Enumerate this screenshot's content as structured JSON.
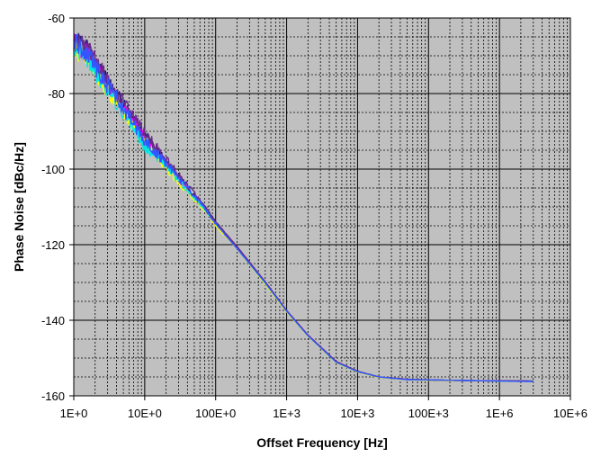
{
  "chart_data": {
    "type": "line",
    "xlabel": "Offset Frequency [Hz]",
    "ylabel": "Phase Noise [dBc/Hz]",
    "xscale": "log",
    "xlim": [
      1,
      1000000
    ],
    "ylim": [
      -160,
      -60
    ],
    "grid": "major and minor",
    "plot_background": "#c0c0c0",
    "x_tick_labels": [
      "1E+0",
      "10E+0",
      "100E+0",
      "1E+3",
      "10E+3",
      "100E+3",
      "1E+6",
      "10E+6"
    ],
    "y_tick_labels": [
      "-60",
      "-80",
      "-100",
      "-120",
      "-140",
      "-160"
    ],
    "y_ticks": [
      -60,
      -80,
      -100,
      -120,
      -140,
      -160
    ],
    "series": [
      {
        "color": "#1a1a6e",
        "x": [
          1,
          1.5,
          2,
          3,
          5,
          7,
          10,
          15,
          20,
          30,
          50,
          70,
          100,
          200,
          500,
          1000,
          2000,
          5000,
          10000,
          20000,
          50000,
          100000,
          200000,
          500000,
          1000000,
          3000000
        ],
        "y": [
          -66,
          -68,
          -72,
          -77,
          -83,
          -87,
          -91,
          -95,
          -98,
          -102,
          -107,
          -110,
          -114,
          -120.5,
          -130,
          -137.5,
          -144,
          -151,
          -153.5,
          -155,
          -155.7,
          -155.8,
          -155.9,
          -156,
          -156,
          -156.1
        ]
      },
      {
        "color": "#ff00ff",
        "x": [
          1,
          1.5,
          2,
          3,
          5,
          7,
          10,
          15,
          20,
          30,
          50,
          70,
          100,
          200,
          500,
          1000,
          2000,
          5000,
          10000,
          20000,
          50000,
          100000,
          200000,
          500000,
          1000000,
          3000000
        ],
        "y": [
          -67,
          -69,
          -73,
          -77,
          -84,
          -87.5,
          -92,
          -95.5,
          -98.5,
          -102.5,
          -107.5,
          -110.5,
          -114.5,
          -121,
          -130,
          -137.5,
          -144,
          -151,
          -153.6,
          -155,
          -155.7,
          -155.8,
          -155.9,
          -156,
          -156.1,
          -156.2
        ]
      },
      {
        "color": "#ffff00",
        "x": [
          1,
          1.5,
          2,
          3,
          5,
          7,
          10,
          15,
          20,
          30,
          50,
          70,
          100,
          200,
          500,
          1000,
          2000,
          5000,
          10000,
          20000,
          50000,
          100000,
          200000,
          500000,
          1000000,
          3000000
        ],
        "y": [
          -68,
          -70,
          -74,
          -79,
          -85,
          -89,
          -93,
          -96.5,
          -99.5,
          -103.5,
          -108,
          -111,
          -115,
          -121,
          -130.5,
          -137.8,
          -144.2,
          -151.2,
          -153.7,
          -155.1,
          -155.7,
          -155.9,
          -156,
          -156,
          -156.1,
          -156.2
        ]
      },
      {
        "color": "#00e5e5",
        "x": [
          1,
          1.5,
          2,
          3,
          5,
          7,
          10,
          15,
          20,
          30,
          50,
          70,
          100,
          200,
          500,
          1000,
          2000,
          5000,
          10000,
          20000,
          50000,
          100000,
          200000,
          500000,
          1000000,
          3000000
        ],
        "y": [
          -67.5,
          -70,
          -74,
          -79,
          -85,
          -89,
          -94,
          -97,
          -99,
          -103,
          -107.5,
          -110.5,
          -114.5,
          -121,
          -130.2,
          -137.6,
          -144.1,
          -151.1,
          -153.6,
          -155,
          -155.7,
          -155.8,
          -155.9,
          -156,
          -156.1,
          -156.2
        ]
      },
      {
        "color": "#6a2a8a",
        "x": [
          1,
          1.5,
          2,
          3,
          5,
          7,
          10,
          15,
          20,
          30,
          50,
          70,
          100,
          200,
          500,
          1000,
          2000,
          5000,
          10000,
          20000,
          50000,
          100000,
          200000,
          500000,
          1000000,
          3000000
        ],
        "y": [
          -65.5,
          -68,
          -71,
          -76,
          -82.5,
          -86.5,
          -90.5,
          -94.5,
          -97.5,
          -101.5,
          -106.5,
          -110,
          -114,
          -120.5,
          -129.8,
          -137.4,
          -143.9,
          -150.9,
          -153.5,
          -155,
          -155.6,
          -155.8,
          -155.9,
          -156,
          -156,
          -156.1
        ]
      },
      {
        "color": "#3355ff",
        "x": [
          1,
          1.5,
          2,
          3,
          5,
          7,
          10,
          15,
          20,
          30,
          50,
          70,
          100,
          200,
          500,
          1000,
          2000,
          5000,
          10000,
          20000,
          50000,
          100000,
          200000,
          500000,
          1000000,
          3000000
        ],
        "y": [
          -66.5,
          -69,
          -72.5,
          -78,
          -84,
          -88,
          -92.5,
          -96,
          -98.5,
          -102.5,
          -107,
          -110.5,
          -114.5,
          -121,
          -130.1,
          -137.6,
          -144.1,
          -151.1,
          -153.6,
          -155,
          -155.7,
          -155.8,
          -155.9,
          -156,
          -156.1,
          -156.2
        ]
      }
    ]
  }
}
